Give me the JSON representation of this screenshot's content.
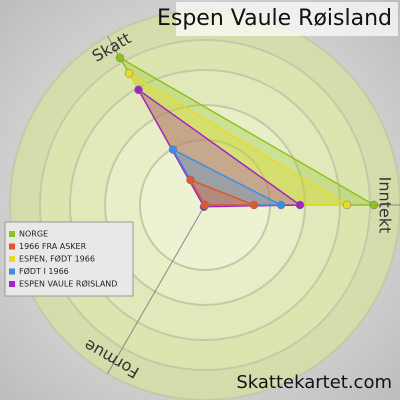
{
  "chart_data": {
    "type": "radar",
    "title": "Espen Vaule Røisland",
    "watermark": "Skattekartet.com",
    "axes": [
      "Skatt",
      "Inntekt",
      "Formue"
    ],
    "rlim": [
      0,
      200
    ],
    "series": [
      {
        "name": "NORGE",
        "color": "#8cc21c",
        "values": [
          170,
          169,
          0
        ]
      },
      {
        "name": "1966 FRA ASKER",
        "color": "#e0582a",
        "values": [
          29,
          49,
          0
        ]
      },
      {
        "name": "ESPEN, FØDT 1966",
        "color": "#e8dc22",
        "values": [
          152,
          142,
          0
        ]
      },
      {
        "name": "FØDT I 1966",
        "color": "#3a8ee0",
        "values": [
          64,
          76,
          0
        ]
      },
      {
        "name": "ESPEN VAULE RØISLAND",
        "color": "#a326c4",
        "values": [
          133,
          95,
          2
        ]
      }
    ]
  }
}
